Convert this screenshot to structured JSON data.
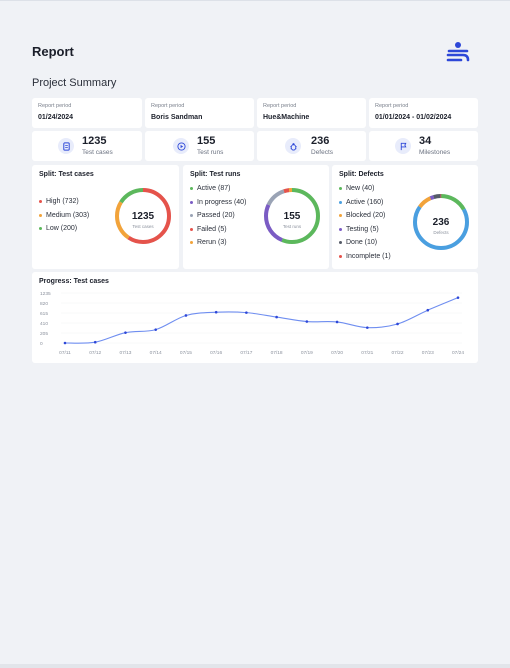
{
  "header": {
    "title": "Report",
    "subtitle": "Project Summary"
  },
  "meta": [
    {
      "label": "Report period",
      "value": "01/24/2024"
    },
    {
      "label": "Report period",
      "value": "Boris Sandman"
    },
    {
      "label": "Report period",
      "value": "Hue&Machine"
    },
    {
      "label": "Report period",
      "value": "01/01/2024 - 01/02/2024"
    }
  ],
  "stats": [
    {
      "value": "1235",
      "label": "Test cases",
      "icon": "document-icon"
    },
    {
      "value": "155",
      "label": "Test runs",
      "icon": "play-icon"
    },
    {
      "value": "236",
      "label": "Defects",
      "icon": "bug-icon"
    },
    {
      "value": "34",
      "label": "Milestones",
      "icon": "flag-icon"
    }
  ],
  "splits": [
    {
      "title": "Split: Test cases",
      "center_value": "1235",
      "center_label": "Test cases",
      "items": [
        {
          "label": "High (732)",
          "value": 732,
          "color": "#e5534b"
        },
        {
          "label": "Medium (303)",
          "value": 303,
          "color": "#f2a33a"
        },
        {
          "label": "Low (200)",
          "value": 200,
          "color": "#5cb85c"
        }
      ]
    },
    {
      "title": "Split: Test runs",
      "center_value": "155",
      "center_label": "Test runs",
      "items": [
        {
          "label": "Active (87)",
          "value": 87,
          "color": "#5cb85c"
        },
        {
          "label": "In progress (40)",
          "value": 40,
          "color": "#7b5cc4"
        },
        {
          "label": "Passed (20)",
          "value": 20,
          "color": "#9aa3b5"
        },
        {
          "label": "Failed (5)",
          "value": 5,
          "color": "#e5534b"
        },
        {
          "label": "Rerun (3)",
          "value": 3,
          "color": "#f2a33a"
        }
      ]
    },
    {
      "title": "Split: Defects",
      "center_value": "236",
      "center_label": "Defects",
      "items": [
        {
          "label": "New (40)",
          "value": 40,
          "color": "#5cb85c"
        },
        {
          "label": "Active (160)",
          "value": 160,
          "color": "#4a9fe0"
        },
        {
          "label": "Blocked (20)",
          "value": 20,
          "color": "#f2a33a"
        },
        {
          "label": "Testing (5)",
          "value": 5,
          "color": "#7b5cc4"
        },
        {
          "label": "Done (10)",
          "value": 10,
          "color": "#555b68"
        },
        {
          "label": "Incomplete (1)",
          "value": 1,
          "color": "#e5534b"
        }
      ]
    }
  ],
  "progress": {
    "title": "Progress: Test cases"
  },
  "chart_data": {
    "type": "line",
    "x": [
      "07/11",
      "07/12",
      "07/13",
      "07/14",
      "07/15",
      "07/16",
      "07/17",
      "07/18",
      "07/19",
      "07/20",
      "07/21",
      "07/22",
      "07/23",
      "07/24"
    ],
    "series": [
      {
        "values": [
          0,
          20,
          255,
          330,
          680,
          760,
          750,
          640,
          530,
          520,
          380,
          470,
          810,
          1120
        ]
      }
    ],
    "y_ticks": [
      "1235",
      "820",
      "615",
      "410",
      "205",
      "0"
    ],
    "ylim": [
      0,
      1235
    ],
    "color": "#6f8ef0"
  },
  "colors": {
    "accent": "#2d47d8",
    "track": "#e6e8ee"
  }
}
